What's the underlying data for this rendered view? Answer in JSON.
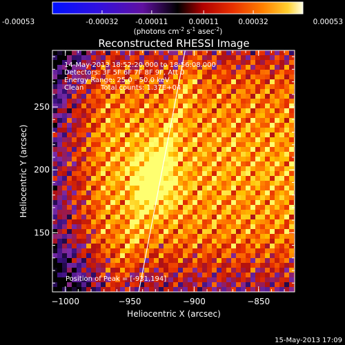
{
  "colorbar": {
    "ticks": [
      {
        "value": -0.00053,
        "label": "-0.00053"
      },
      {
        "value": -0.00032,
        "label": "-0.00032"
      },
      {
        "value": -0.00011,
        "label": "-0.00011"
      },
      {
        "value": 0.00011,
        "label": "0.00011"
      },
      {
        "value": 0.00032,
        "label": "0.00032"
      },
      {
        "value": 0.00053,
        "label": "0.00053"
      }
    ],
    "range": [
      -0.00053,
      0.00053
    ],
    "unit_prefix": "(photons cm",
    "unit_exp1": "-2",
    "unit_mid": " s",
    "unit_exp2": "-1",
    "unit_mid2": " asec",
    "unit_exp3": "-2",
    "unit_suffix": ")"
  },
  "chart_data": {
    "type": "heatmap",
    "title": "Reconstructed RHESSI Image",
    "xlabel": "Heliocentric X (arcsec)",
    "ylabel": "Heliocentric Y (arcsec)",
    "xlim": [
      -1010,
      -822
    ],
    "ylim": [
      103,
      295
    ],
    "xticks": [
      {
        "value": -1000,
        "label": "−1000"
      },
      {
        "value": -950,
        "label": "−950"
      },
      {
        "value": -900,
        "label": "−900"
      },
      {
        "value": -850,
        "label": "−850"
      }
    ],
    "yticks": [
      {
        "value": 150,
        "label": "150"
      },
      {
        "value": 200,
        "label": "200"
      },
      {
        "value": 250,
        "label": "250"
      }
    ],
    "peak": [
      -931,
      194
    ],
    "limb_line": [
      [
        -943,
        103
      ],
      [
        -907,
        295
      ]
    ],
    "colormap": [
      "#000000",
      "#3a1080",
      "#7a2aa8",
      "#b01010",
      "#e83000",
      "#ff7800",
      "#ffc000",
      "#ffff70"
    ]
  },
  "annotations": {
    "time_range": "14-May-2013 18:52:20.000 to 18:56:08.000",
    "detectors": "Detectors: 3F 5F 6F 7F 8F 9F, Att 0",
    "energy": "Energy Range: 25.0 - 50.0 keV",
    "clean_label": "Clean",
    "total_counts": "Total counts: 1.37E+04",
    "peak_position": "Position of Peak = [-931,194]"
  },
  "footer": {
    "timestamp": "15-May-2013 17:09"
  }
}
